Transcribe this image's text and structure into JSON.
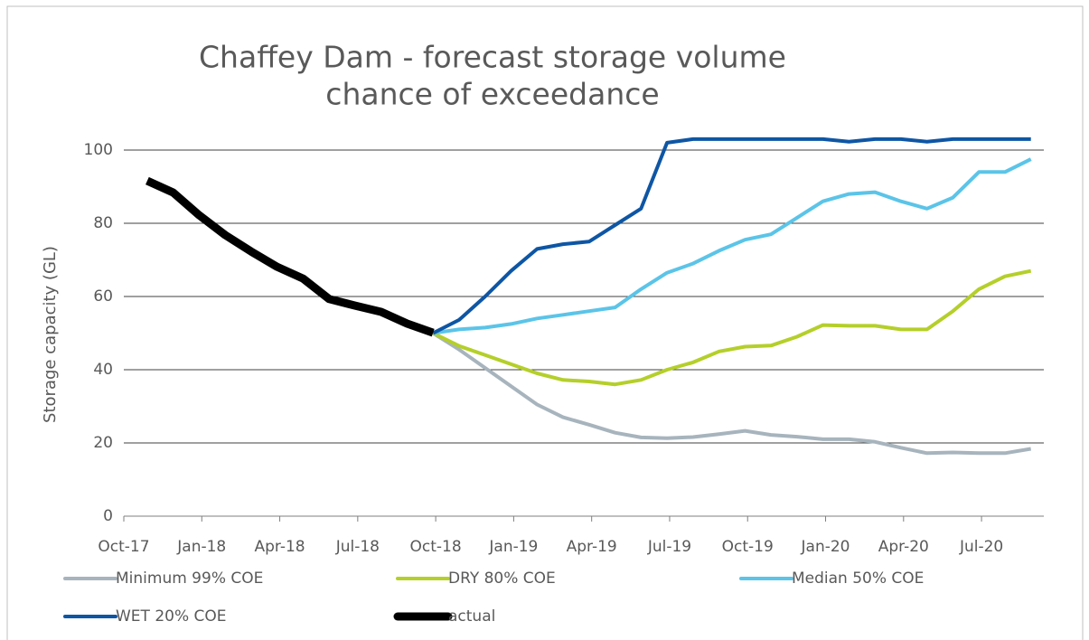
{
  "chart_data": {
    "type": "line",
    "title": [
      "Chaffey Dam - forecast storage volume",
      "chance of exceedance"
    ],
    "y_label": "Storage capacity (GL)",
    "categories": [
      "Oct-17",
      null,
      null,
      "Jan-18",
      null,
      null,
      "Apr-18",
      null,
      null,
      "Jul-18",
      null,
      null,
      "Oct-18",
      null,
      null,
      "Jan-19",
      null,
      null,
      "Apr-19",
      null,
      null,
      "Jul-19",
      null,
      null,
      "Oct-19",
      null,
      null,
      "Jan-20",
      null,
      null,
      "Apr-20",
      null,
      null,
      "Jul-20",
      null
    ],
    "series": [
      {
        "name": "Minimum 99% COE",
        "color": "#a7b4bd",
        "values": [
          null,
          null,
          null,
          null,
          null,
          null,
          null,
          null,
          null,
          null,
          null,
          50,
          45.5,
          40.5,
          35.5,
          30.5,
          27,
          25,
          22.8,
          21.5,
          21.3,
          21.6,
          22.4,
          23.3,
          22.2,
          21.7,
          21,
          21,
          20.3,
          18.7,
          17.2,
          17.4,
          17.2,
          17.2,
          18.4
        ]
      },
      {
        "name": "DRY 80% COE",
        "color": "#b5cf2a",
        "values": [
          null,
          null,
          null,
          null,
          null,
          null,
          null,
          null,
          null,
          null,
          null,
          50,
          46.5,
          44,
          41.5,
          39,
          37.2,
          36.8,
          36,
          37.2,
          40,
          42,
          45,
          46.3,
          46.6,
          49,
          52.2,
          52,
          52,
          51,
          51,
          56,
          62,
          65.5,
          67
        ]
      },
      {
        "name": "Median 50% COE",
        "color": "#5bc4e8",
        "values": [
          null,
          null,
          null,
          null,
          null,
          null,
          null,
          null,
          null,
          null,
          null,
          50,
          51,
          51.5,
          52.5,
          54,
          55,
          56,
          57,
          62,
          66.5,
          69,
          72.5,
          75.5,
          77,
          81.5,
          86,
          88,
          88.5,
          86,
          84,
          87,
          94,
          94,
          97.5
        ]
      },
      {
        "name": "WET 20% COE",
        "color": "#0e56a4",
        "values": [
          null,
          null,
          null,
          null,
          null,
          null,
          null,
          null,
          null,
          null,
          null,
          50,
          53.6,
          60,
          67,
          73,
          74.3,
          75,
          79.5,
          84,
          102,
          103,
          103,
          103,
          103,
          103,
          103,
          102.3,
          103,
          103,
          102.3,
          103,
          103,
          103,
          103
        ]
      },
      {
        "name": "actual",
        "color": "#000000",
        "values": [
          91.6,
          88.4,
          82.2,
          76.8,
          72.3,
          68.1,
          64.9,
          59.3,
          57.5,
          55.8,
          52.6,
          50.1,
          null,
          null,
          null,
          null,
          null,
          null,
          null,
          null,
          null,
          null,
          null,
          null,
          null,
          null,
          null,
          null,
          null,
          null,
          null,
          null,
          null,
          null,
          null
        ]
      }
    ],
    "ylim": [
      0,
      105
    ],
    "yticks": [
      0,
      20,
      40,
      60,
      80,
      100
    ],
    "grid": true,
    "legend": "bottom"
  }
}
